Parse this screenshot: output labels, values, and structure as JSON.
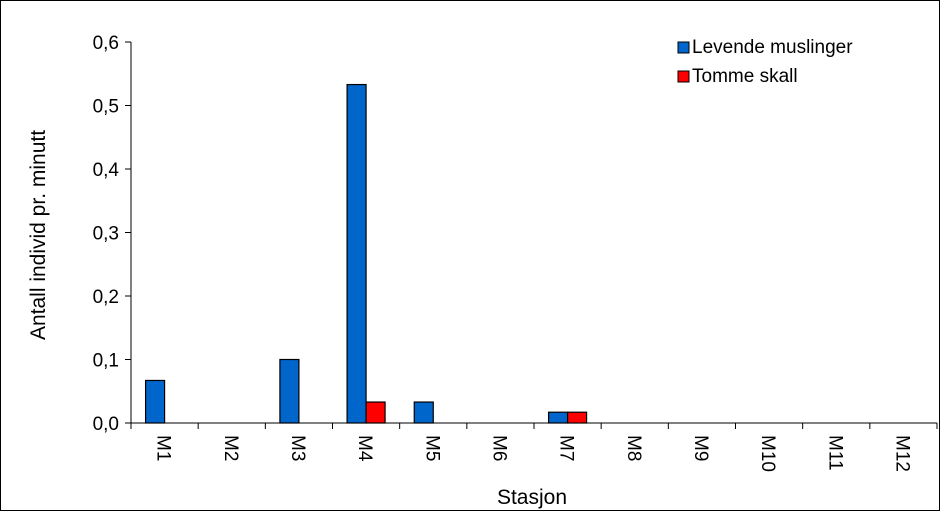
{
  "chart_data": {
    "type": "bar",
    "title": "",
    "xlabel": "Stasjon",
    "ylabel": "Antall individ pr. minutt",
    "ylim": [
      0,
      0.6
    ],
    "yticks": [
      0,
      0.1,
      0.2,
      0.3,
      0.4,
      0.5,
      0.6
    ],
    "ytick_labels": [
      "0,0",
      "0,1",
      "0,2",
      "0,3",
      "0,4",
      "0,5",
      "0,6"
    ],
    "categories": [
      "M1",
      "M2",
      "M3",
      "M4",
      "M5",
      "M6",
      "M7",
      "M8",
      "M9",
      "M10",
      "M11",
      "M12"
    ],
    "series": [
      {
        "name": "Levende muslinger",
        "color": "#0066cc",
        "values": [
          0.067,
          0,
          0.1,
          0.533,
          0.033,
          0,
          0.017,
          0,
          0,
          0,
          0,
          0
        ]
      },
      {
        "name": "Tomme skall",
        "color": "#ff0000",
        "values": [
          0,
          0,
          0,
          0.033,
          0,
          0,
          0.017,
          0,
          0,
          0,
          0,
          0
        ]
      }
    ],
    "legend_position": "top-right",
    "grid": false
  }
}
